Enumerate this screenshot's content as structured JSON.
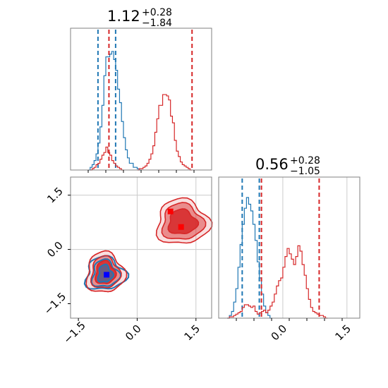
{
  "chart_data": {
    "type": "corner",
    "colors": {
      "blue": "#1f77b4",
      "red": "#d62728",
      "marker_red": "#ff0000",
      "marker_blue": "#0000ff"
    },
    "grid": true,
    "panels": [
      {
        "name": "param-1-marginal",
        "type": "histogram",
        "title": {
          "value": "1.12",
          "upper": "+0.28",
          "lower": "−1.84"
        },
        "xlim": [
          -1.7,
          1.9
        ],
        "ylim": [
          0,
          1
        ],
        "series": [
          {
            "color": "blue",
            "bins": {
              "start": -1.25,
              "width": 0.05,
              "heights": [
                0.0,
                0.02,
                0.04,
                0.07,
                0.12,
                0.2,
                0.32,
                0.48,
                0.7,
                0.84,
                0.84,
                0.86,
                0.88,
                0.82,
                0.74,
                0.6,
                0.5,
                0.36,
                0.24,
                0.15,
                0.09,
                0.05,
                0.05,
                0.02,
                0.02,
                0.01,
                0.0
              ]
            },
            "quantile_lines": [
              -1.0,
              -0.55
            ]
          },
          {
            "color": "red",
            "bins": {
              "start": -1.2,
              "width": 0.05,
              "heights": [
                0.0,
                0.01,
                0.02,
                0.04,
                0.05,
                0.08,
                0.11,
                0.13,
                0.17,
                0.13,
                0.11,
                0.07,
                0.05,
                0.03,
                0.02,
                0.01,
                0.0
              ]
            },
            "bins2": {
              "start": 0.0,
              "width": 0.05,
              "heights": [
                0.0,
                0.01,
                0.01,
                0.02,
                0.03,
                0.05,
                0.08,
                0.12,
                0.18,
                0.28,
                0.38,
                0.48,
                0.48,
                0.56,
                0.56,
                0.55,
                0.52,
                0.4,
                0.35,
                0.22,
                0.14,
                0.1,
                0.06,
                0.04,
                0.03,
                0.02,
                0.01,
                0.0
              ]
            },
            "quantile_lines": [
              -0.72,
              1.4
            ]
          }
        ]
      },
      {
        "name": "joint-2d",
        "type": "contour",
        "xlim": [
          -1.7,
          1.9
        ],
        "ylim": [
          -1.9,
          2.0
        ],
        "x_ticks": [
          "−1.5",
          "0.0",
          "1.5"
        ],
        "y_ticks": [
          "−1.5",
          "0.0",
          "1.5"
        ],
        "y_tick_values": [
          -1.5,
          0.0,
          1.5
        ],
        "x_tick_values": [
          -1.5,
          0.0,
          1.5
        ],
        "grid_x": [
          0.0,
          1.5
        ],
        "grid_y": [
          0.0,
          1.5
        ],
        "red_blobs": [
          {
            "cx": -0.82,
            "cy": -0.65,
            "levels": [
              [
                0.25,
                0.32
              ],
              [
                0.36,
                0.44
              ],
              [
                0.48,
                0.56
              ]
            ]
          },
          {
            "cx": 1.15,
            "cy": 0.75,
            "levels": [
              [
                0.36,
                0.34
              ],
              [
                0.52,
                0.5
              ],
              [
                0.66,
                0.62
              ]
            ]
          }
        ],
        "blue_blob": {
          "cx": -0.82,
          "cy": -0.68,
          "levels": [
            [
              0.18,
              0.24
            ],
            [
              0.33,
              0.37
            ],
            [
              0.5,
              0.45
            ]
          ]
        },
        "markers": [
          {
            "x": 0.85,
            "y": 1.05,
            "color": "marker_red"
          },
          {
            "x": 1.12,
            "y": 0.62,
            "color": "marker_red"
          },
          {
            "x": -0.78,
            "y": -0.7,
            "color": "marker_blue"
          }
        ]
      },
      {
        "name": "param-2-marginal",
        "type": "histogram",
        "title": {
          "value": "0.56",
          "upper": "+0.28",
          "lower": "−1.05"
        },
        "xlim": [
          -1.5,
          1.8
        ],
        "ylim": [
          0,
          1
        ],
        "x_ticks": [
          "0.0",
          "1.5"
        ],
        "x_tick_values": [
          0.0,
          1.5
        ],
        "grid_x": [
          0.0,
          1.5
        ],
        "series": [
          {
            "color": "blue",
            "bins": {
              "start": -1.3,
              "width": 0.05,
              "heights": [
                0.0,
                0.02,
                0.05,
                0.12,
                0.22,
                0.38,
                0.55,
                0.7,
                0.82,
                0.9,
                0.85,
                0.8,
                0.7,
                0.58,
                0.42,
                0.3,
                0.18,
                0.09,
                0.04,
                0.02,
                0.0
              ]
            },
            "quantile_lines": [
              -0.95,
              -0.55
            ]
          },
          {
            "color": "red",
            "bins": {
              "start": -1.3,
              "width": 0.05,
              "heights": [
                0.0,
                0.01,
                0.01,
                0.02,
                0.03,
                0.04,
                0.05,
                0.08,
                0.1,
                0.1,
                0.09,
                0.08,
                0.09,
                0.05,
                0.03,
                0.04,
                0.05,
                0.06,
                0.04,
                0.06,
                0.09,
                0.12,
                0.18,
                0.24,
                0.28,
                0.3,
                0.38,
                0.46,
                0.52,
                0.48,
                0.44,
                0.4,
                0.46,
                0.54,
                0.5,
                0.4,
                0.32,
                0.22,
                0.14,
                0.08,
                0.05,
                0.04,
                0.03,
                0.02,
                0.02,
                0.01,
                0.0
              ]
            },
            "quantile_lines": [
              -0.5,
              0.85
            ]
          }
        ]
      }
    ]
  }
}
